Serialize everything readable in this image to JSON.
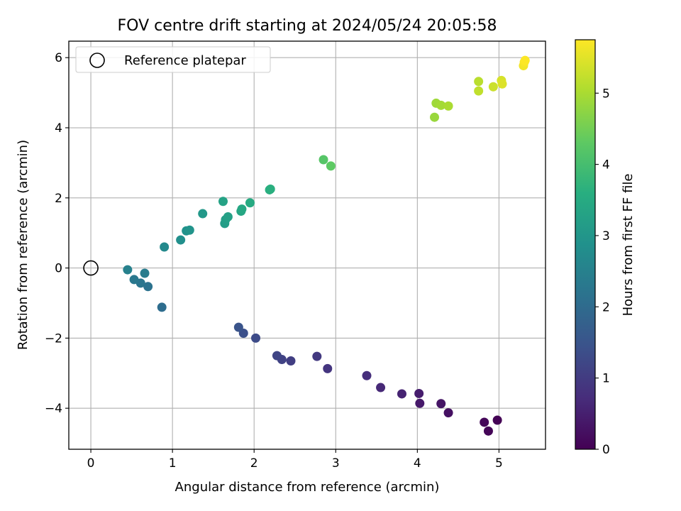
{
  "chart_data": {
    "type": "scatter",
    "title": "FOV centre drift starting at 2024/05/24 20:05:58",
    "xlabel": "Angular distance from reference (arcmin)",
    "ylabel": "Rotation from reference (arcmin)",
    "xlim": [
      -0.27,
      5.57
    ],
    "ylim": [
      -5.17,
      6.47
    ],
    "xticks": [
      0,
      1,
      2,
      3,
      4,
      5
    ],
    "yticks": [
      -4,
      -2,
      0,
      2,
      4,
      6
    ],
    "xtick_labels": [
      "0",
      "1",
      "2",
      "3",
      "4",
      "5"
    ],
    "ytick_labels": [
      "−4",
      "−2",
      "0",
      "2",
      "4",
      "6"
    ],
    "grid": true,
    "legend": {
      "position": "top-left",
      "label": "Reference platepar"
    },
    "reference_point": {
      "x": 0,
      "y": 0
    },
    "colorbar": {
      "label": "Hours from first FF file",
      "colormap": "viridis",
      "range": [
        0,
        5.75
      ],
      "ticks": [
        0,
        1,
        2,
        3,
        4,
        5
      ],
      "tick_labels": [
        "0",
        "1",
        "2",
        "3",
        "4",
        "5"
      ]
    },
    "points": [
      {
        "x": 4.98,
        "y": -4.34,
        "c": 0.02
      },
      {
        "x": 4.87,
        "y": -4.65,
        "c": 0.06
      },
      {
        "x": 4.82,
        "y": -4.4,
        "c": 0.1
      },
      {
        "x": 4.38,
        "y": -4.13,
        "c": 0.25
      },
      {
        "x": 4.29,
        "y": -3.87,
        "c": 0.32
      },
      {
        "x": 4.03,
        "y": -3.86,
        "c": 0.4
      },
      {
        "x": 4.02,
        "y": -3.58,
        "c": 0.46
      },
      {
        "x": 3.81,
        "y": -3.59,
        "c": 0.55
      },
      {
        "x": 3.55,
        "y": -3.41,
        "c": 0.65
      },
      {
        "x": 3.38,
        "y": -3.07,
        "c": 0.75
      },
      {
        "x": 2.9,
        "y": -2.87,
        "c": 0.88
      },
      {
        "x": 2.77,
        "y": -2.52,
        "c": 0.95
      },
      {
        "x": 2.45,
        "y": -2.65,
        "c": 1.05
      },
      {
        "x": 2.34,
        "y": -2.61,
        "c": 1.12
      },
      {
        "x": 2.28,
        "y": -2.5,
        "c": 1.18
      },
      {
        "x": 2.02,
        "y": -2.0,
        "c": 1.3
      },
      {
        "x": 1.87,
        "y": -1.86,
        "c": 1.4
      },
      {
        "x": 1.81,
        "y": -1.69,
        "c": 1.48
      },
      {
        "x": 0.87,
        "y": -1.12,
        "c": 2.05
      },
      {
        "x": 0.7,
        "y": -0.53,
        "c": 2.15
      },
      {
        "x": 0.61,
        "y": -0.43,
        "c": 2.22
      },
      {
        "x": 0.53,
        "y": -0.33,
        "c": 2.3
      },
      {
        "x": 0.66,
        "y": -0.15,
        "c": 2.38
      },
      {
        "x": 0.45,
        "y": -0.05,
        "c": 2.5
      },
      {
        "x": 0.9,
        "y": 0.6,
        "c": 2.7
      },
      {
        "x": 1.1,
        "y": 0.8,
        "c": 2.82
      },
      {
        "x": 1.17,
        "y": 1.06,
        "c": 2.9
      },
      {
        "x": 1.21,
        "y": 1.08,
        "c": 2.95
      },
      {
        "x": 1.37,
        "y": 1.55,
        "c": 3.05
      },
      {
        "x": 1.64,
        "y": 1.27,
        "c": 3.15
      },
      {
        "x": 1.65,
        "y": 1.38,
        "c": 3.2
      },
      {
        "x": 1.68,
        "y": 1.46,
        "c": 3.25
      },
      {
        "x": 1.62,
        "y": 1.9,
        "c": 3.3
      },
      {
        "x": 1.84,
        "y": 1.62,
        "c": 3.38
      },
      {
        "x": 1.85,
        "y": 1.68,
        "c": 3.42
      },
      {
        "x": 1.95,
        "y": 1.86,
        "c": 3.5
      },
      {
        "x": 2.19,
        "y": 2.23,
        "c": 3.6
      },
      {
        "x": 2.2,
        "y": 2.25,
        "c": 3.62
      },
      {
        "x": 2.85,
        "y": 3.09,
        "c": 4.2
      },
      {
        "x": 2.94,
        "y": 2.91,
        "c": 4.3
      },
      {
        "x": 4.21,
        "y": 4.3,
        "c": 4.85
      },
      {
        "x": 4.23,
        "y": 4.7,
        "c": 4.9
      },
      {
        "x": 4.29,
        "y": 4.64,
        "c": 4.95
      },
      {
        "x": 4.38,
        "y": 4.62,
        "c": 5.0
      },
      {
        "x": 4.75,
        "y": 5.32,
        "c": 5.15
      },
      {
        "x": 4.75,
        "y": 5.05,
        "c": 5.2
      },
      {
        "x": 4.93,
        "y": 5.17,
        "c": 5.3
      },
      {
        "x": 5.03,
        "y": 5.35,
        "c": 5.4
      },
      {
        "x": 5.04,
        "y": 5.25,
        "c": 5.45
      },
      {
        "x": 5.3,
        "y": 5.77,
        "c": 5.65
      },
      {
        "x": 5.31,
        "y": 5.87,
        "c": 5.7
      },
      {
        "x": 5.32,
        "y": 5.92,
        "c": 5.74
      }
    ]
  }
}
